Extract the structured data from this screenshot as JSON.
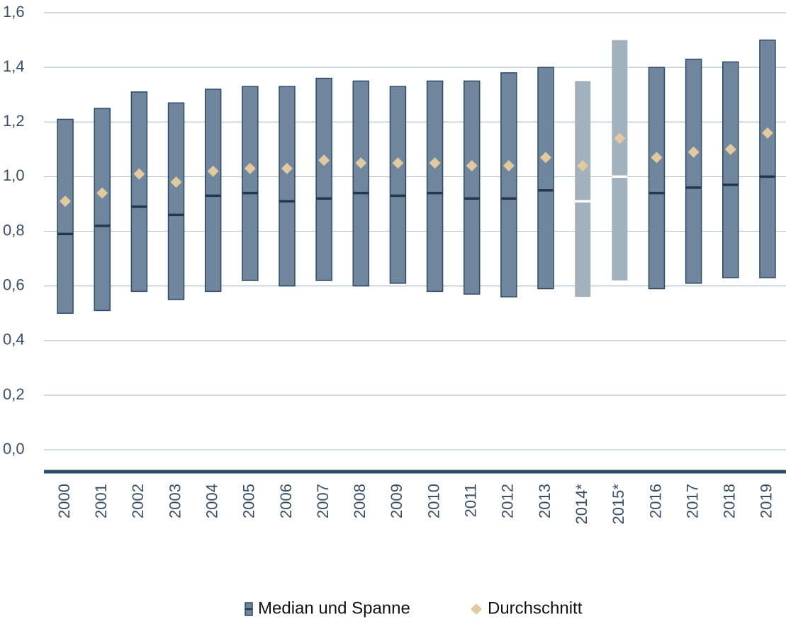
{
  "chart_data": {
    "type": "range",
    "categories": [
      "2000",
      "2001",
      "2002",
      "2003",
      "2004",
      "2005",
      "2006",
      "2007",
      "2008",
      "2009",
      "2010",
      "2011",
      "2012",
      "2013",
      "2014*",
      "2015*",
      "2016",
      "2017",
      "2018",
      "2019"
    ],
    "series": [
      {
        "name": "Median und Spanne",
        "min": [
          0.5,
          0.51,
          0.58,
          0.55,
          0.58,
          0.62,
          0.6,
          0.62,
          0.6,
          0.61,
          0.58,
          0.57,
          0.56,
          0.59,
          0.56,
          0.62,
          0.59,
          0.61,
          0.63,
          0.63
        ],
        "max": [
          1.21,
          1.25,
          1.31,
          1.27,
          1.32,
          1.33,
          1.33,
          1.36,
          1.35,
          1.33,
          1.35,
          1.35,
          1.38,
          1.4,
          1.35,
          1.5,
          1.4,
          1.43,
          1.42,
          1.5
        ],
        "median": [
          0.79,
          0.82,
          0.89,
          0.86,
          0.93,
          0.94,
          0.91,
          0.92,
          0.94,
          0.93,
          0.94,
          0.92,
          0.92,
          0.95,
          0.91,
          1.0,
          0.94,
          0.96,
          0.97,
          1.0
        ],
        "colors": [
          "#6f869c",
          "#6f869c",
          "#6f869c",
          "#6f869c",
          "#6f869c",
          "#6f869c",
          "#6f869c",
          "#6f869c",
          "#6f869c",
          "#6f869c",
          "#6f869c",
          "#6f869c",
          "#6f869c",
          "#6f869c",
          "#a3b1bd",
          "#a3b1bd",
          "#6f869c",
          "#6f869c",
          "#6f869c",
          "#6f869c"
        ]
      },
      {
        "name": "Durchschnitt",
        "color": "#e2caa0",
        "values": [
          0.91,
          0.94,
          1.01,
          0.98,
          1.02,
          1.03,
          1.03,
          1.06,
          1.05,
          1.05,
          1.05,
          1.04,
          1.04,
          1.07,
          1.04,
          1.14,
          1.07,
          1.09,
          1.1,
          1.16
        ]
      }
    ],
    "ylim": [
      -0.08,
      1.6
    ],
    "yticks": [
      {
        "value": 0,
        "label": "0,0"
      },
      {
        "value": 0.2,
        "label": "0,2"
      },
      {
        "value": 0.4,
        "label": "0,4"
      },
      {
        "value": 0.6,
        "label": "0,6"
      },
      {
        "value": 0.8,
        "label": "0,8"
      },
      {
        "value": 1.0,
        "label": "1,0"
      },
      {
        "value": 1.2,
        "label": "1,2"
      },
      {
        "value": 1.4,
        "label": "1,4"
      },
      {
        "value": 1.6,
        "label": "1,6"
      }
    ],
    "grid": true
  }
}
